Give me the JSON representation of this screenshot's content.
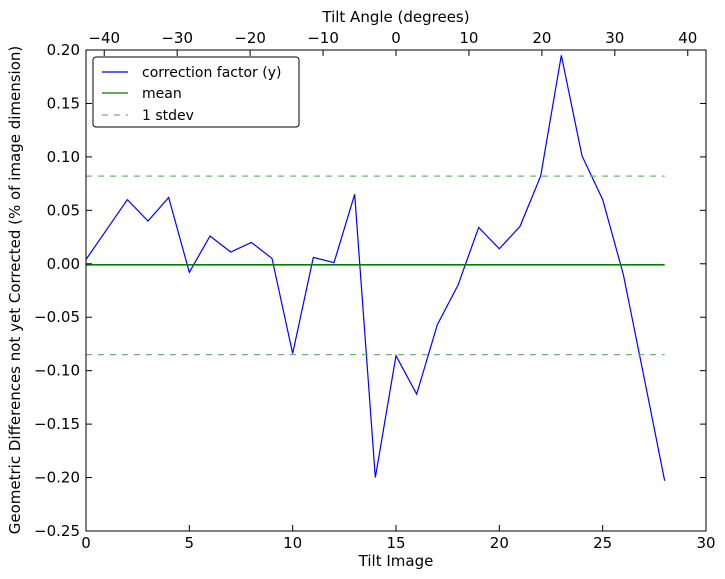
{
  "chart_data": {
    "type": "line",
    "xlabel": "Tilt Image",
    "ylabel": "Geometric Differences not yet Corrected (% of image dimension)",
    "top_xlabel": "Tilt Angle (degrees)",
    "xlim": [
      0,
      30
    ],
    "ylim": [
      -0.25,
      0.2
    ],
    "top_xlim": [
      -42.5,
      42.5
    ],
    "x_ticks": [
      0,
      5,
      10,
      15,
      20,
      25,
      30
    ],
    "y_ticks": [
      -0.25,
      -0.2,
      -0.15,
      -0.1,
      -0.05,
      0.0,
      0.05,
      0.1,
      0.15,
      0.2
    ],
    "y_tick_labels": [
      "−0.25",
      "−0.20",
      "−0.15",
      "−0.10",
      "−0.05",
      "0.00",
      "0.05",
      "0.10",
      "0.15",
      "0.20"
    ],
    "top_ticks": [
      -40,
      -30,
      -20,
      -10,
      0,
      10,
      20,
      30,
      40
    ],
    "top_tick_labels": [
      "−40",
      "−30",
      "−20",
      "−10",
      "0",
      "10",
      "20",
      "30",
      "40"
    ],
    "grid": false,
    "legend_position": "top-left",
    "series": [
      {
        "name": "correction factor (y)",
        "color": "#0000ff",
        "style": "solid",
        "x": [
          0,
          1,
          2,
          3,
          4,
          5,
          6,
          7,
          8,
          9,
          10,
          11,
          12,
          13,
          14,
          15,
          16,
          17,
          18,
          19,
          20,
          21,
          22,
          23,
          24,
          25,
          26,
          27,
          28
        ],
        "y": [
          0.004,
          0.032,
          0.06,
          0.04,
          0.062,
          -0.008,
          0.026,
          0.011,
          0.02,
          0.005,
          -0.084,
          0.006,
          0.001,
          0.065,
          -0.2,
          -0.086,
          -0.122,
          -0.057,
          -0.02,
          0.034,
          0.014,
          0.035,
          0.082,
          0.195,
          0.101,
          0.06,
          -0.01,
          -0.106,
          -0.203
        ]
      },
      {
        "name": "mean",
        "color": "#008000",
        "style": "solid",
        "x": [
          0,
          28
        ],
        "y": [
          -0.001,
          -0.001
        ]
      },
      {
        "name": "1 stdev",
        "color": "#66bb66",
        "style": "dashed",
        "x": [
          0,
          28
        ],
        "y": [
          0.082,
          0.082
        ]
      },
      {
        "name": "",
        "color": "#66bb66",
        "style": "dashed",
        "x": [
          0,
          28
        ],
        "y": [
          -0.085,
          -0.085
        ]
      }
    ]
  }
}
